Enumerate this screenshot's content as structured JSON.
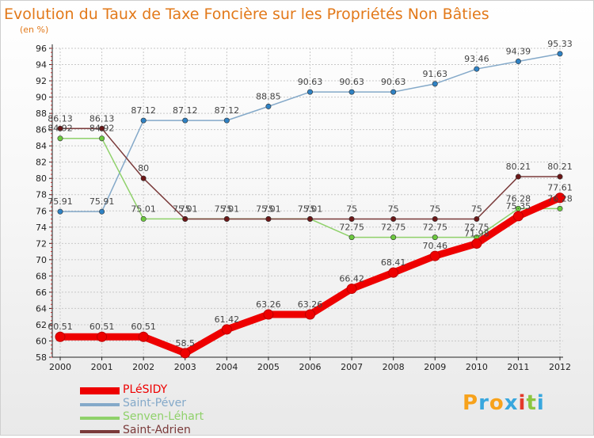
{
  "chart_data": {
    "type": "line",
    "title": "Evolution du Taux de Taxe Foncière sur les Propriétés Non Bâties",
    "ylabel": "(en %)",
    "categories": [
      "2000",
      "2001",
      "2002",
      "2003",
      "2004",
      "2005",
      "2006",
      "2007",
      "2008",
      "2009",
      "2010",
      "2011",
      "2012"
    ],
    "ylim": [
      58,
      96
    ],
    "yticks": [
      58,
      60,
      62,
      64,
      66,
      68,
      70,
      72,
      74,
      76,
      78,
      80,
      82,
      84,
      86,
      88,
      90,
      92,
      94,
      96
    ],
    "series": [
      {
        "name": "PLéSIDY",
        "color": "#ee0000",
        "marker": "#ee0000",
        "values": [
          60.51,
          60.51,
          60.51,
          58.5,
          61.42,
          63.26,
          63.26,
          66.42,
          68.41,
          70.46,
          71.98,
          75.35,
          77.61
        ],
        "labels": [
          "60.51",
          "60.51",
          "60.51",
          "58.5",
          "61.42",
          "63.26",
          "63.26",
          "66.42",
          "68.41",
          "70.46",
          "71.98",
          "75.35",
          "77.61"
        ]
      },
      {
        "name": "Saint-Péver",
        "color": "#84a9c9",
        "marker": "#2f82c4",
        "values": [
          75.91,
          75.91,
          87.12,
          87.12,
          87.12,
          88.85,
          90.63,
          90.63,
          90.63,
          91.63,
          93.46,
          94.39,
          95.33
        ],
        "labels": [
          "75.91",
          "75.91",
          "87.12",
          "87.12",
          "87.12",
          "88.85",
          "90.63",
          "90.63",
          "90.63",
          "91.63",
          "93.46",
          "94.39",
          "95.33"
        ]
      },
      {
        "name": "Senven-Léhart",
        "color": "#8fd16a",
        "marker": "#6cc93e",
        "values": [
          84.92,
          84.92,
          75.01,
          75.01,
          75.01,
          75.01,
          75.01,
          72.75,
          72.75,
          72.75,
          72.75,
          76.28,
          76.28
        ],
        "labels": [
          "84.92",
          "84.92",
          "75.01",
          "75.01",
          "75.01",
          "75.01",
          "75.01",
          "72.75",
          "72.75",
          "72.75",
          "72.75",
          "76.28",
          "76.28"
        ]
      },
      {
        "name": "Saint-Adrien",
        "color": "#7a3a3a",
        "marker": "#6b1717",
        "values": [
          86.13,
          86.13,
          80,
          75,
          75,
          75,
          75,
          75,
          75,
          75,
          75,
          80.21,
          80.21
        ],
        "labels": [
          "86.13",
          "86.13",
          "80",
          "75",
          "75",
          "75",
          "75",
          "75",
          "75",
          "75",
          "75",
          "80.21",
          "80.21"
        ]
      }
    ]
  },
  "legend": [
    {
      "label": "PLéSIDY",
      "color": "#ee0000"
    },
    {
      "label": "Saint-Péver",
      "color": "#84a9c9"
    },
    {
      "label": "Senven-Léhart",
      "color": "#8fd16a"
    },
    {
      "label": "Saint-Adrien",
      "color": "#7a3a3a"
    }
  ],
  "logo": {
    "letters": [
      "P",
      "r",
      "o",
      "x",
      "i",
      "t",
      "i"
    ],
    "colors": [
      "#f7a21b",
      "#38a7de",
      "#f7a21b",
      "#38a7de",
      "#e33a2a",
      "#8cc63f",
      "#38a7de"
    ]
  },
  "colors": {
    "title": "#e2791a",
    "grid": "#c8c8c8",
    "axis": "#222222"
  }
}
